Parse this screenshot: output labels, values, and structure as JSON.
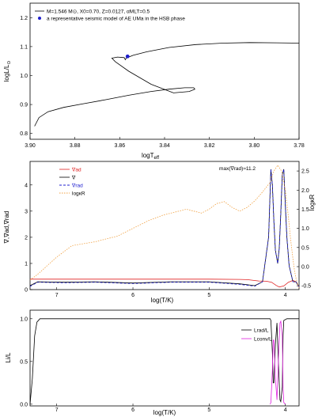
{
  "chart_data": [
    {
      "type": "line",
      "xlabel": "logT",
      "xlabel_sub": "eff",
      "ylabel": "logL/L",
      "ylabel_sub": "⊙",
      "xlim": [
        3.9,
        3.78
      ],
      "ylim": [
        0.78,
        1.25
      ],
      "xticks": [
        "3.90",
        "3.88",
        "3.86",
        "3.84",
        "3.82",
        "3.80",
        "3.78"
      ],
      "yticks": [
        "0.8",
        "0.9",
        "1.0",
        "1.1",
        "1.2"
      ],
      "legend": {
        "placement": "top-left",
        "track_label": "M=1.546 M⊙, X0=0.70, Z=0.0127, αMLT=0.5",
        "model_label": "a representative seismic model of AE UMa in the HSB phase"
      },
      "series": [
        {
          "type": "line",
          "color": "#000000",
          "x": [
            3.898,
            3.896,
            3.892,
            3.885,
            3.876,
            3.866,
            3.856,
            3.846,
            3.838,
            3.831,
            3.827,
            3.8265,
            3.829,
            3.836,
            3.846,
            3.856,
            3.862,
            3.8635,
            3.861,
            3.858,
            3.8575,
            3.857,
            3.854,
            3.848,
            3.838,
            3.826,
            3.814,
            3.802,
            3.79,
            3.78
          ],
          "y": [
            0.825,
            0.855,
            0.875,
            0.89,
            0.903,
            0.917,
            0.932,
            0.945,
            0.953,
            0.958,
            0.958,
            0.953,
            0.945,
            0.94,
            0.97,
            1.015,
            1.048,
            1.06,
            1.064,
            1.062,
            1.055,
            1.061,
            1.07,
            1.082,
            1.097,
            1.107,
            1.112,
            1.114,
            1.113,
            1.112
          ]
        },
        {
          "type": "scatter",
          "color": "#1f1fcc",
          "x": [
            3.8565
          ],
          "y": [
            1.066
          ]
        }
      ]
    },
    {
      "type": "line",
      "xlabel": "log(T/K)",
      "ylabel": "∇,∇ad,∇rad",
      "ylabel_right": "logκR",
      "xlim": [
        7.35,
        3.82
      ],
      "ylim": [
        0,
        4.9
      ],
      "ylim_right": [
        -0.6,
        2.75
      ],
      "xticks": [
        "7",
        "6",
        "5",
        "4"
      ],
      "yticks": [
        "0",
        "1",
        "2",
        "3",
        "4"
      ],
      "yticks_right": [
        "-0.5",
        "0.0",
        "0.5",
        "1.0",
        "1.5",
        "2.0",
        "2.5"
      ],
      "annotation": "max(∇rad)≈11.2",
      "legend": {
        "placement": "top-left",
        "entries": [
          "∇ad",
          "∇",
          "∇rad",
          "logκR"
        ]
      },
      "series": [
        {
          "name": "∇ad",
          "color": "#e02020",
          "dash": "solid",
          "x": [
            7.35,
            7.2,
            6.5,
            6.0,
            5.5,
            5.0,
            4.6,
            4.5,
            4.35,
            4.25,
            4.18,
            4.12,
            4.08,
            4.02,
            3.96,
            3.9,
            3.86,
            3.82
          ],
          "y": [
            0.4,
            0.4,
            0.4,
            0.4,
            0.4,
            0.4,
            0.39,
            0.38,
            0.33,
            0.32,
            0.28,
            0.16,
            0.1,
            0.14,
            0.28,
            0.35,
            0.3,
            0.1
          ]
        },
        {
          "name": "∇",
          "color": "#000000",
          "dash": "solid",
          "x": [
            7.35,
            7.25,
            6.9,
            6.5,
            6.0,
            5.5,
            5.0,
            4.6,
            4.4,
            4.3,
            4.22,
            4.19,
            4.17,
            4.15,
            4.13,
            4.1,
            4.08,
            4.06,
            4.04,
            4.02,
            4.0,
            3.98,
            3.95,
            3.9,
            3.86,
            3.82
          ],
          "y": [
            0.15,
            0.3,
            0.28,
            0.3,
            0.25,
            0.3,
            0.3,
            0.22,
            0.15,
            0.3,
            2.0,
            4.6,
            4.0,
            2.6,
            1.5,
            1.0,
            1.6,
            2.9,
            4.4,
            4.6,
            3.2,
            2.0,
            0.9,
            0.3,
            0.3,
            0.1
          ]
        },
        {
          "name": "∇rad",
          "color": "#2020d0",
          "dash": "dashed",
          "x": [
            7.35,
            7.25,
            6.9,
            6.5,
            6.0,
            5.5,
            5.0,
            4.6,
            4.4,
            4.3,
            4.22,
            4.19,
            4.17,
            4.15,
            4.13,
            4.1,
            4.08,
            4.06,
            4.04,
            4.02,
            4.0,
            3.98,
            3.95,
            3.9,
            3.86,
            3.82
          ],
          "y": [
            0.12,
            0.28,
            0.26,
            0.28,
            0.23,
            0.28,
            0.28,
            0.2,
            0.13,
            0.3,
            2.0,
            4.6,
            4.0,
            2.6,
            1.5,
            1.0,
            1.6,
            2.9,
            4.4,
            4.6,
            3.2,
            2.0,
            0.9,
            0.3,
            0.3,
            0.1
          ]
        },
        {
          "name": "logκR",
          "color": "#f0a040",
          "dash": "dotted",
          "axis": "right",
          "x": [
            7.35,
            7.25,
            7.0,
            6.8,
            6.5,
            6.2,
            6.0,
            5.8,
            5.6,
            5.4,
            5.3,
            5.1,
            5.0,
            4.9,
            4.8,
            4.7,
            4.6,
            4.5,
            4.4,
            4.3,
            4.2,
            4.15,
            4.1,
            4.05,
            4.0,
            3.96,
            3.93,
            3.9,
            3.88,
            3.86,
            3.84,
            3.82
          ],
          "y": [
            -0.35,
            -0.2,
            0.25,
            0.55,
            0.65,
            0.8,
            1.0,
            1.2,
            1.35,
            1.45,
            1.5,
            1.4,
            1.5,
            1.65,
            1.7,
            1.55,
            1.45,
            1.55,
            1.72,
            1.95,
            2.2,
            2.5,
            2.65,
            2.5,
            2.0,
            1.3,
            0.7,
            0.2,
            -0.1,
            -0.3,
            -0.45,
            -0.55
          ]
        }
      ]
    },
    {
      "type": "line",
      "xlabel": "log(T/K)",
      "ylabel": "Li/L",
      "xlim": [
        7.35,
        3.82
      ],
      "ylim": [
        -0.02,
        1.1
      ],
      "xticks": [
        "7",
        "6",
        "5",
        "4"
      ],
      "yticks": [
        "0.0",
        "0.5",
        "1.0"
      ],
      "legend": {
        "placement": "top-right",
        "entries": [
          "Lrad/L",
          "Lconv/L"
        ]
      },
      "series": [
        {
          "name": "Lrad/L",
          "color": "#000000",
          "x": [
            7.35,
            7.32,
            7.29,
            7.26,
            7.22,
            7.1,
            6.5,
            5.0,
            4.3,
            4.2,
            4.19,
            4.17,
            4.16,
            4.15,
            4.13,
            4.11,
            4.09,
            4.07,
            4.06,
            4.04,
            4.03,
            4.02,
            3.98,
            3.9,
            3.82
          ],
          "y": [
            0.0,
            0.3,
            0.8,
            0.96,
            1.0,
            1.0,
            1.0,
            1.0,
            1.0,
            1.0,
            0.98,
            0.6,
            0.25,
            0.25,
            0.7,
            0.95,
            0.45,
            0.05,
            0.03,
            0.2,
            0.8,
            0.98,
            1.0,
            1.0,
            1.0
          ]
        },
        {
          "name": "Lconv/L",
          "color": "#e020e0",
          "x": [
            4.2,
            4.19,
            4.17,
            4.16,
            4.15,
            4.13,
            4.11,
            4.09,
            4.07,
            4.06,
            4.04,
            4.03,
            4.02,
            4.0
          ],
          "y": [
            0.0,
            0.02,
            0.4,
            0.75,
            0.75,
            0.3,
            0.05,
            0.55,
            0.95,
            0.97,
            0.8,
            0.2,
            0.02,
            0.0
          ]
        }
      ]
    }
  ]
}
